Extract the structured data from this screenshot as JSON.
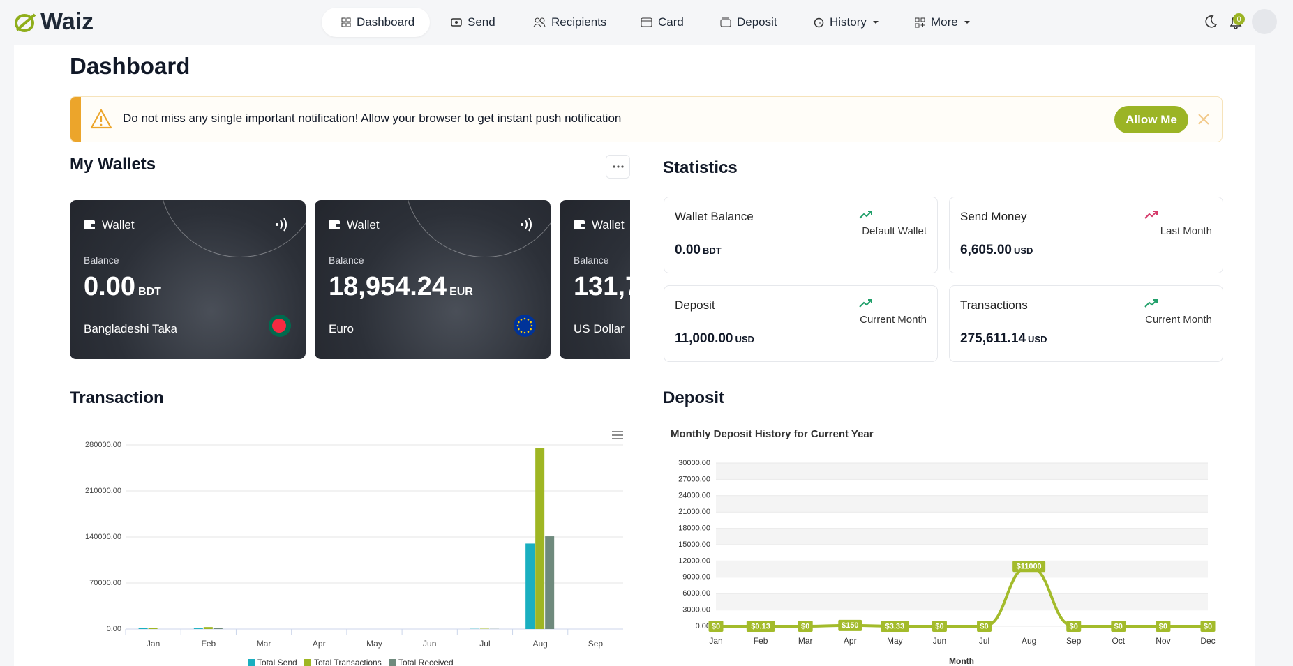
{
  "nav": {
    "brand": "Waiz",
    "items": [
      "Dashboard",
      "Send",
      "Recipients",
      "Card",
      "Deposit",
      "History",
      "More"
    ],
    "notifications": "0"
  },
  "header": {
    "title": "Dashboard"
  },
  "notice": {
    "text": "Do not miss any single important notification! Allow your browser to get instant push notification",
    "button": "Allow Me"
  },
  "wallets": {
    "title": "My Wallets",
    "cards": [
      {
        "label": "Wallet",
        "balance_label": "Balance",
        "amount": "0.00",
        "code": "BDT",
        "name": "Bangladeshi Taka"
      },
      {
        "label": "Wallet",
        "balance_label": "Balance",
        "amount": "18,954.24",
        "code": "EUR",
        "name": "Euro"
      },
      {
        "label": "Wallet",
        "balance_label": "Balance",
        "amount": "131,7",
        "name": "US Dollar"
      }
    ]
  },
  "statistics": {
    "title": "Statistics",
    "items": [
      {
        "label": "Wallet Balance",
        "period": "Default Wallet",
        "value": "0.00",
        "unit": "BDT"
      },
      {
        "label": "Send Money",
        "period": "Last Month",
        "value": "6,605.00",
        "unit": "USD"
      },
      {
        "label": "Deposit",
        "period": "Current Month",
        "value": "11,000.00",
        "unit": "USD"
      },
      {
        "label": "Transactions",
        "period": "Current Month",
        "value": "275,611.14",
        "unit": "USD"
      }
    ]
  },
  "sections": {
    "transaction": "Transaction",
    "deposit": "Deposit"
  },
  "chart_data": [
    {
      "type": "bar",
      "categories": [
        "Jan",
        "Feb",
        "Mar",
        "Apr",
        "May",
        "Jun",
        "Jul",
        "Aug",
        "Sep"
      ],
      "series": [
        {
          "name": "Total Send",
          "color": "#1aafc0",
          "values": [
            1500,
            1000,
            0,
            0,
            0,
            0,
            300,
            130000,
            0
          ]
        },
        {
          "name": "Total Transactions",
          "color": "#9fb623",
          "values": [
            1800,
            3000,
            0,
            0,
            0,
            0,
            500,
            275611.14,
            0
          ]
        },
        {
          "name": "Total Received",
          "color": "#6f8a7d",
          "values": [
            0,
            1500,
            0,
            0,
            0,
            0,
            200,
            141000,
            0
          ]
        }
      ],
      "ylim": [
        0,
        280000
      ],
      "yticks": [
        {
          "value": 0,
          "label": "0.00"
        },
        {
          "value": 70000,
          "label": "70000.00"
        },
        {
          "value": 140000,
          "label": "140000.00"
        },
        {
          "value": 210000,
          "label": "210000.00"
        },
        {
          "value": 280000,
          "label": "280000.00"
        }
      ],
      "grid": true,
      "legend": "bottom"
    },
    {
      "type": "line",
      "title": "Monthly Deposit History for Current Year",
      "xlabel": "Month",
      "categories": [
        "Jan",
        "Feb",
        "Mar",
        "Apr",
        "May",
        "Jun",
        "Jul",
        "Aug",
        "Sep",
        "Oct",
        "Nov",
        "Dec"
      ],
      "values": [
        0,
        0.13,
        0,
        150,
        3.33,
        0,
        0,
        11000,
        0,
        0,
        0,
        0
      ],
      "value_labels": [
        "$0",
        "$0.13",
        "$0",
        "$150",
        "$3.33",
        "$0",
        "$0",
        "$11000",
        "$0",
        "$0",
        "$0",
        "$0"
      ],
      "color": "#a3bb2b",
      "ylim": [
        0,
        30000
      ],
      "yticks": [
        {
          "value": 0,
          "label": "0.00"
        },
        {
          "value": 3000,
          "label": "3000.00"
        },
        {
          "value": 6000,
          "label": "6000.00"
        },
        {
          "value": 9000,
          "label": "9000.00"
        },
        {
          "value": 12000,
          "label": "12000.00"
        },
        {
          "value": 15000,
          "label": "15000.00"
        },
        {
          "value": 18000,
          "label": "18000.00"
        },
        {
          "value": 21000,
          "label": "21000.00"
        },
        {
          "value": 24000,
          "label": "24000.00"
        },
        {
          "value": 27000,
          "label": "27000.00"
        },
        {
          "value": 30000,
          "label": "30000.00"
        }
      ],
      "grid": true
    }
  ]
}
